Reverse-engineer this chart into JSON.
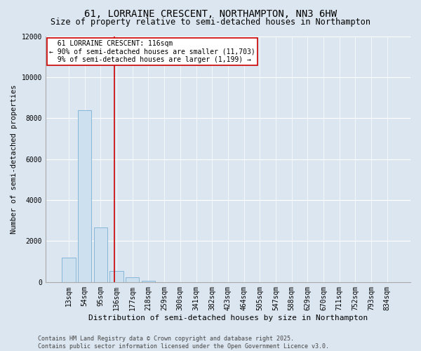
{
  "title1": "61, LORRAINE CRESCENT, NORTHAMPTON, NN3 6HW",
  "title2": "Size of property relative to semi-detached houses in Northampton",
  "xlabel": "Distribution of semi-detached houses by size in Northampton",
  "ylabel": "Number of semi-detached properties",
  "categories": [
    "13sqm",
    "54sqm",
    "95sqm",
    "136sqm",
    "177sqm",
    "218sqm",
    "259sqm",
    "300sqm",
    "341sqm",
    "382sqm",
    "423sqm",
    "464sqm",
    "505sqm",
    "547sqm",
    "588sqm",
    "629sqm",
    "670sqm",
    "711sqm",
    "752sqm",
    "793sqm",
    "834sqm"
  ],
  "values": [
    1200,
    8400,
    2650,
    550,
    250,
    50,
    0,
    0,
    0,
    0,
    0,
    0,
    0,
    0,
    0,
    0,
    0,
    0,
    0,
    0,
    0
  ],
  "bar_color": "#cce0f0",
  "bar_edge_color": "#7aafd4",
  "vline_x": 2.85,
  "vline_color": "#cc0000",
  "annotation_text": "  61 LORRAINE CRESCENT: 116sqm\n← 90% of semi-detached houses are smaller (11,703)\n  9% of semi-detached houses are larger (1,199) →",
  "annotation_box_color": "#ffffff",
  "annotation_box_edge": "#cc0000",
  "background_color": "#dce6f0",
  "plot_bg_color": "#dce6f0",
  "footer": "Contains HM Land Registry data © Crown copyright and database right 2025.\nContains public sector information licensed under the Open Government Licence v3.0.",
  "ylim": [
    0,
    12000
  ],
  "yticks": [
    0,
    2000,
    4000,
    6000,
    8000,
    10000,
    12000
  ],
  "title1_fontsize": 10,
  "title2_fontsize": 8.5,
  "xlabel_fontsize": 8,
  "ylabel_fontsize": 7.5,
  "tick_fontsize": 7,
  "footer_fontsize": 6,
  "ann_fontsize": 7
}
